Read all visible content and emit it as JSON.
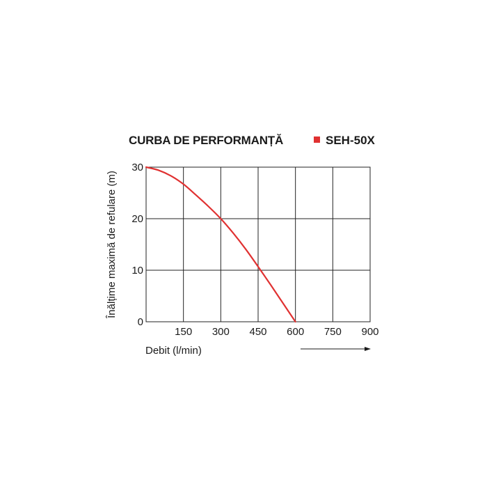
{
  "chart_data": {
    "type": "line",
    "title": "CURBA DE PERFORMANȚĂ",
    "xlabel": "Debit (l/min)",
    "ylabel": "Înălțime maximă de refulare (m)",
    "x_ticks": [
      "150",
      "300",
      "450",
      "600",
      "750",
      "900"
    ],
    "y_ticks": [
      "0",
      "10",
      "20",
      "30"
    ],
    "xlim": [
      0,
      900
    ],
    "ylim": [
      0,
      30
    ],
    "grid": true,
    "legend_position": "top-right",
    "series": [
      {
        "name": "SEH-50X",
        "color": "#e03131",
        "x": [
          0,
          50,
          100,
          150,
          200,
          250,
          300,
          350,
          400,
          450,
          500,
          550,
          600
        ],
        "y": [
          30,
          29.4,
          28.3,
          26.7,
          24.6,
          22.4,
          20,
          17.2,
          14.1,
          10.7,
          7.2,
          3.6,
          0
        ]
      }
    ]
  }
}
